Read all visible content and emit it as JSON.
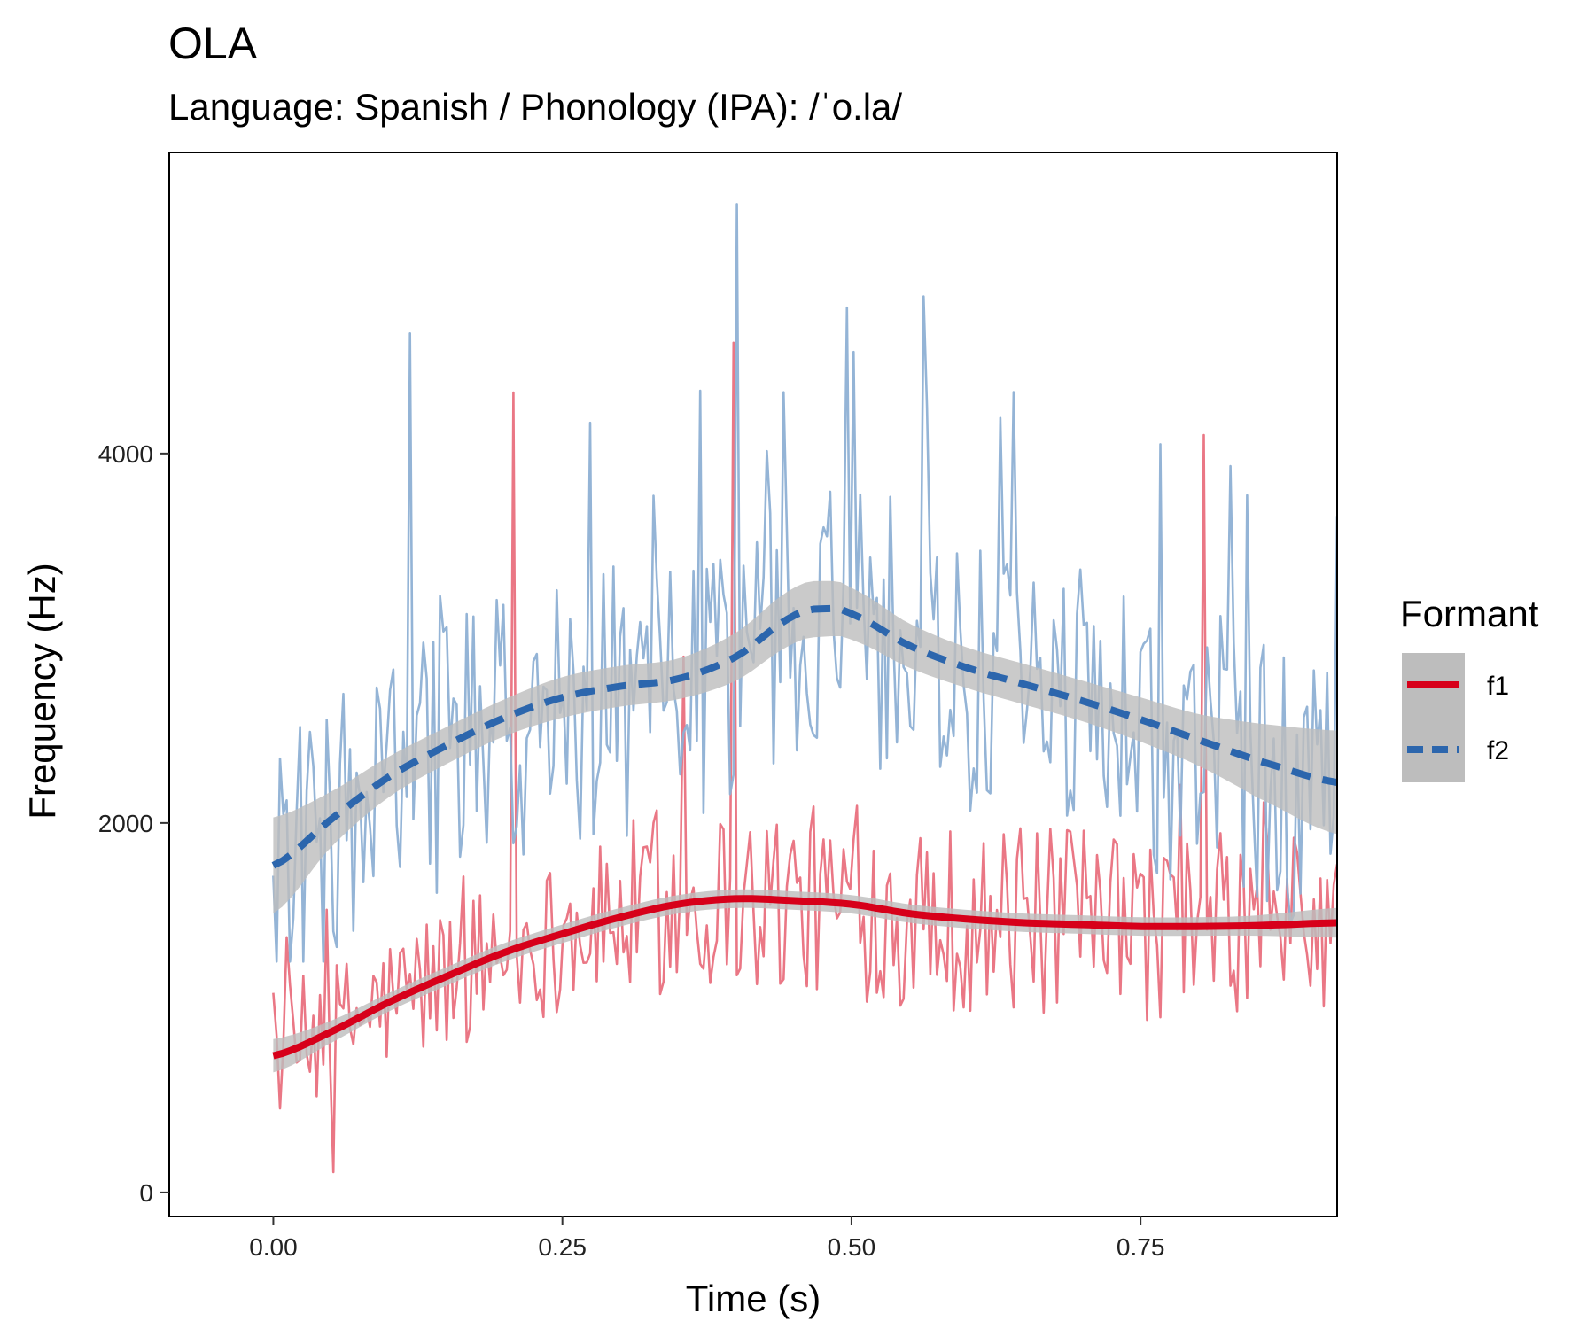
{
  "chart_data": {
    "type": "line",
    "title": "OLA",
    "subtitle": "Language: Spanish / Phonology (IPA): /ˈo.la/",
    "xlabel": "Time (s)",
    "ylabel": "Frequency (Hz)",
    "xlim": [
      -0.09,
      0.92
    ],
    "ylim": [
      -130,
      5630
    ],
    "x_ticks": [
      0.0,
      0.25,
      0.5,
      0.75
    ],
    "x_tick_labels": [
      "0.00",
      "0.25",
      "0.50",
      "0.75"
    ],
    "y_ticks": [
      0,
      2000,
      4000
    ],
    "y_tick_labels": [
      "0",
      "2000",
      "4000"
    ],
    "grid": false,
    "legend": {
      "title": "Formant",
      "placement": "right",
      "entries": [
        {
          "label": "f1",
          "color": "#d7001a",
          "linetype": "solid"
        },
        {
          "label": "f2",
          "color": "#2c66ad",
          "linetype": "dashed"
        }
      ]
    },
    "colors": {
      "f1_raw": "#e9707e",
      "f2_raw": "#8eb0d4",
      "f1_smooth": "#d7001a",
      "f2_smooth": "#2c66ad",
      "confidence_band": "#bdbdbd"
    },
    "series": [
      {
        "name": "f1",
        "kind": "smoothed",
        "x": [
          0.0,
          0.05,
          0.1,
          0.15,
          0.2,
          0.25,
          0.3,
          0.35,
          0.4,
          0.45,
          0.5,
          0.55,
          0.6,
          0.65,
          0.7,
          0.75,
          0.8,
          0.85,
          0.92
        ],
        "y": [
          740,
          870,
          1030,
          1170,
          1300,
          1400,
          1490,
          1560,
          1590,
          1580,
          1560,
          1510,
          1480,
          1460,
          1450,
          1440,
          1440,
          1445,
          1460
        ],
        "band_halfwidth": [
          90,
          60,
          50,
          50,
          50,
          50,
          50,
          50,
          50,
          50,
          50,
          50,
          50,
          50,
          50,
          50,
          50,
          55,
          80
        ]
      },
      {
        "name": "f2",
        "kind": "smoothed",
        "x": [
          0.0,
          0.05,
          0.1,
          0.15,
          0.2,
          0.25,
          0.3,
          0.35,
          0.4,
          0.45,
          0.48,
          0.5,
          0.55,
          0.6,
          0.65,
          0.7,
          0.75,
          0.8,
          0.85,
          0.92
        ],
        "y": [
          1770,
          2020,
          2250,
          2420,
          2570,
          2680,
          2740,
          2780,
          2900,
          3120,
          3160,
          3130,
          2960,
          2840,
          2750,
          2660,
          2560,
          2450,
          2340,
          2220
        ],
        "band_halfwidth": [
          260,
          150,
          110,
          100,
          100,
          110,
          110,
          110,
          130,
          150,
          150,
          140,
          120,
          110,
          110,
          110,
          120,
          140,
          200,
          280
        ]
      },
      {
        "name": "f1",
        "kind": "raw",
        "x_start": 0.0,
        "x_end": 0.92,
        "samples": 320,
        "approx_range": [
          100,
          4600
        ],
        "outliers": [
          {
            "x": 0.207,
            "y": 4330
          },
          {
            "x": 0.398,
            "y": 4650
          },
          {
            "x": 0.806,
            "y": 4100
          },
          {
            "x": 0.356,
            "y": 2900
          },
          {
            "x": 0.052,
            "y": 110
          }
        ]
      },
      {
        "name": "f2",
        "kind": "raw",
        "x_start": 0.0,
        "x_end": 0.92,
        "samples": 320,
        "approx_range": [
          1250,
          5350
        ],
        "outliers": [
          {
            "x": 0.402,
            "y": 5350
          },
          {
            "x": 0.503,
            "y": 4550
          },
          {
            "x": 0.563,
            "y": 4850
          },
          {
            "x": 0.117,
            "y": 4650
          },
          {
            "x": 0.368,
            "y": 4340
          },
          {
            "x": 0.768,
            "y": 4050
          }
        ]
      }
    ]
  }
}
